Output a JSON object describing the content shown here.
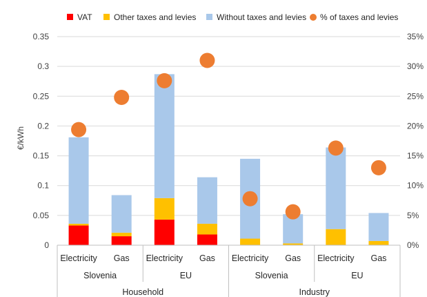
{
  "chart_data": {
    "type": "bar",
    "stacked": true,
    "categories": [
      "Electricity",
      "Gas",
      "Electricity",
      "Gas",
      "Electricity",
      "Gas",
      "Electricity",
      "Gas"
    ],
    "regions": [
      {
        "label": "Slovenia",
        "span": [
          0,
          1
        ]
      },
      {
        "label": "EU",
        "span": [
          2,
          3
        ]
      },
      {
        "label": "Slovenia",
        "span": [
          4,
          5
        ]
      },
      {
        "label": "EU",
        "span": [
          6,
          7
        ]
      }
    ],
    "sectors": [
      {
        "label": "Household",
        "span": [
          0,
          3
        ]
      },
      {
        "label": "Industry",
        "span": [
          4,
          7
        ]
      }
    ],
    "series": [
      {
        "name": "VAT",
        "color": "#ff0000",
        "axis": "left",
        "kind": "bar",
        "values": [
          0.033,
          0.015,
          0.043,
          0.018,
          0,
          0,
          0,
          0
        ]
      },
      {
        "name": "Other taxes and levies",
        "color": "#ffc000",
        "axis": "left",
        "kind": "bar",
        "values": [
          0.003,
          0.006,
          0.036,
          0.018,
          0.011,
          0.003,
          0.027,
          0.007
        ]
      },
      {
        "name": "Without taxes and levies",
        "color": "#a9c8ea",
        "axis": "left",
        "kind": "bar",
        "values": [
          0.145,
          0.063,
          0.208,
          0.078,
          0.134,
          0.049,
          0.137,
          0.047
        ]
      },
      {
        "name": "% of taxes and levies",
        "color": "#ed7d31",
        "axis": "right",
        "kind": "scatter",
        "values": [
          19.4,
          24.8,
          27.6,
          31.0,
          7.8,
          5.6,
          16.3,
          13.0
        ]
      }
    ],
    "ylabel": "€/kWh",
    "ylim": [
      0,
      0.35
    ],
    "yticks": [
      "0",
      "0.05",
      "0.1",
      "0.15",
      "0.2",
      "0.25",
      "0.3",
      "0.35"
    ],
    "y2lim": [
      0,
      35
    ],
    "y2ticks": [
      "0%",
      "5%",
      "10%",
      "15%",
      "20%",
      "25%",
      "30%",
      "35%"
    ],
    "grid": true,
    "legend_position": "top"
  }
}
